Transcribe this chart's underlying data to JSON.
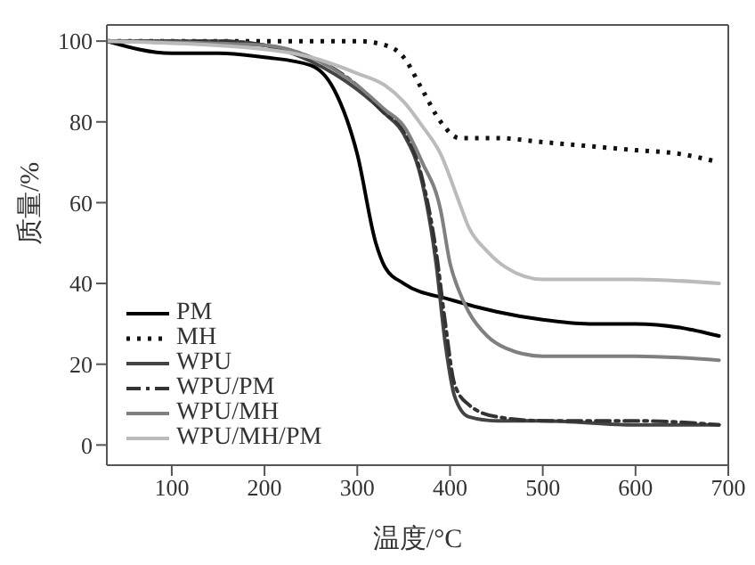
{
  "chart_data": {
    "type": "line",
    "xlabel": "温度/°C",
    "ylabel": "质量/%",
    "xlim": [
      30,
      700
    ],
    "ylim": [
      -5,
      104
    ],
    "xticks": [
      100,
      200,
      300,
      400,
      500,
      600,
      700
    ],
    "yticks": [
      0,
      20,
      40,
      60,
      80,
      100
    ],
    "grid": false,
    "legend": "bottom left",
    "marker": "none",
    "series": [
      {
        "name": "PM",
        "color": "#000000",
        "line_style": "solid",
        "x": [
          30,
          100,
          150,
          200,
          250,
          275,
          300,
          320,
          330,
          350,
          400,
          450,
          500,
          550,
          600,
          650,
          690
        ],
        "values": [
          100,
          97,
          97,
          96,
          94,
          88,
          72,
          50,
          44,
          40,
          36,
          33,
          31,
          30,
          30,
          29,
          27
        ]
      },
      {
        "name": "MH",
        "color": "#111111",
        "line_style": "dotted",
        "x": [
          30,
          300,
          330,
          350,
          370,
          390,
          410,
          450,
          500,
          600,
          650,
          690
        ],
        "values": [
          100,
          100,
          99,
          96,
          88,
          80,
          76,
          76,
          75,
          73,
          72,
          70
        ]
      },
      {
        "name": "WPU",
        "color": "#444444",
        "line_style": "solid",
        "x": [
          30,
          150,
          200,
          250,
          300,
          330,
          350,
          370,
          385,
          395,
          405,
          420,
          450,
          500,
          600,
          690
        ],
        "values": [
          100,
          100,
          99,
          95,
          88,
          82,
          77,
          65,
          45,
          25,
          12,
          7,
          6,
          6,
          5,
          5
        ]
      },
      {
        "name": "WPU/PM",
        "color": "#333333",
        "line_style": "dashdot",
        "x": [
          30,
          150,
          200,
          250,
          300,
          330,
          350,
          370,
          385,
          395,
          405,
          420,
          450,
          500,
          600,
          690
        ],
        "values": [
          100,
          100,
          99,
          96,
          89,
          82,
          78,
          66,
          48,
          30,
          15,
          10,
          7,
          6,
          6,
          5
        ]
      },
      {
        "name": "WPU/MH",
        "color": "#808080",
        "line_style": "solid",
        "x": [
          30,
          200,
          250,
          300,
          330,
          350,
          370,
          390,
          400,
          410,
          420,
          440,
          460,
          500,
          600,
          690
        ],
        "values": [
          100,
          99,
          96,
          89,
          83,
          79,
          70,
          58,
          45,
          38,
          33,
          27,
          24,
          22,
          22,
          21
        ]
      },
      {
        "name": "WPU/MH/PM",
        "color": "#bbbbbb",
        "line_style": "solid",
        "x": [
          30,
          200,
          250,
          300,
          330,
          350,
          370,
          390,
          410,
          420,
          440,
          460,
          500,
          600,
          690
        ],
        "values": [
          100,
          98,
          96,
          92,
          89,
          85,
          79,
          72,
          60,
          54,
          48,
          44,
          41,
          41,
          40
        ]
      }
    ]
  }
}
